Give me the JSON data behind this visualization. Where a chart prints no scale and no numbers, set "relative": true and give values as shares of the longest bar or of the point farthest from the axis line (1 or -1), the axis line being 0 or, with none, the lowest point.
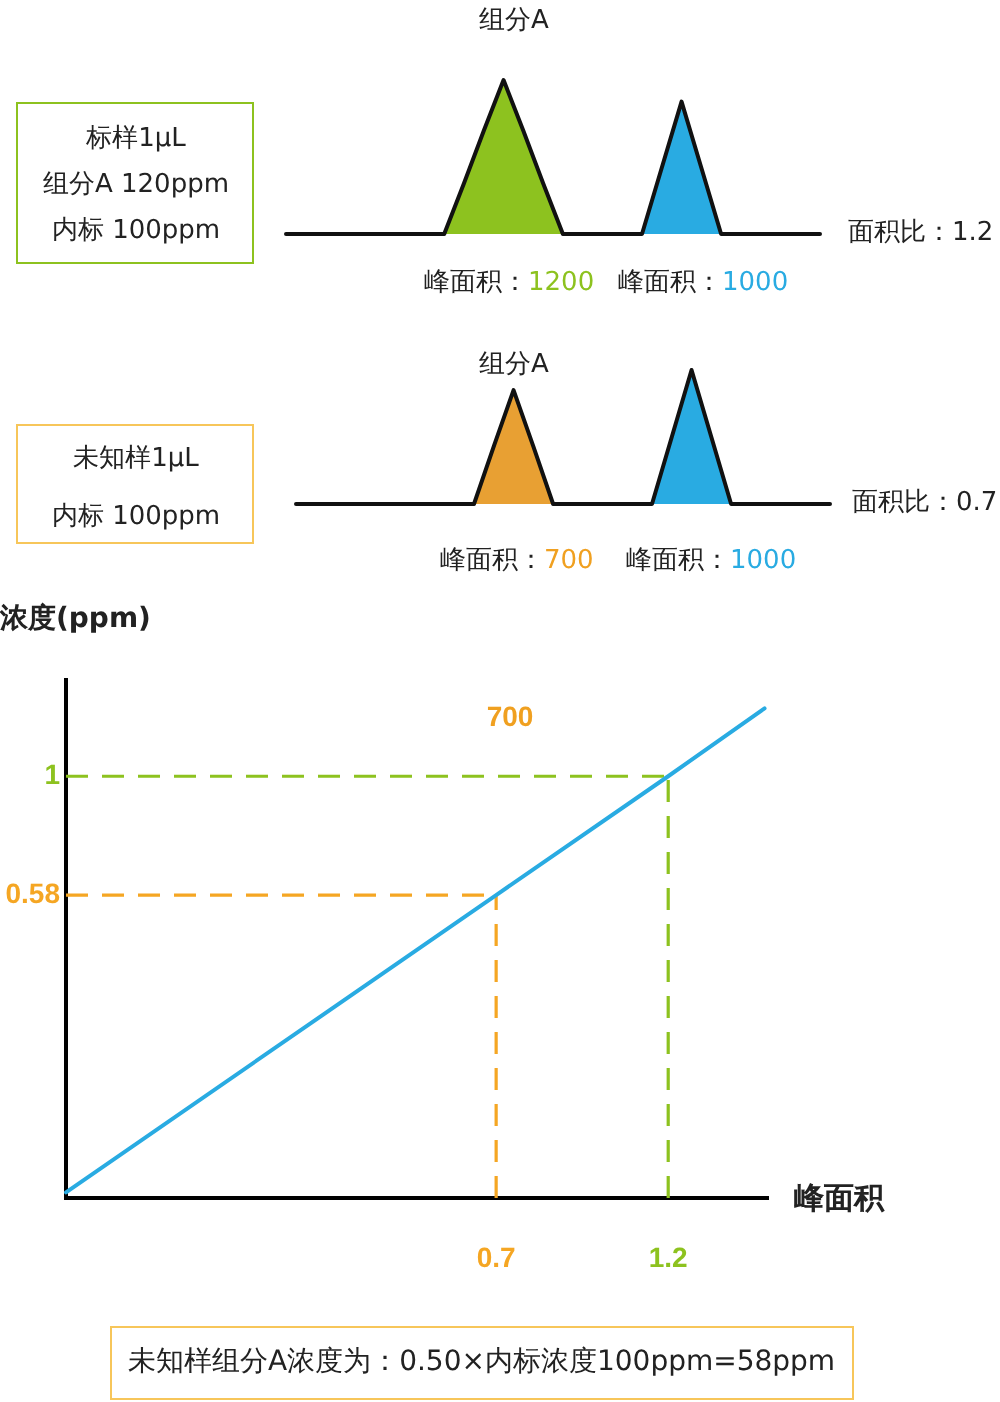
{
  "chart_data": [
    {
      "type": "line",
      "relative": true,
      "categories": [
        null,
        null,
        null,
        null,
        null,
        null,
        null,
        null,
        null,
        null,
        null,
        null,
        null,
        null,
        null,
        null,
        null,
        null,
        null,
        null,
        null,
        null,
        null,
        null,
        null,
        null,
        null,
        null
      ],
      "series": [
        {
          "type": "area",
          "color": "#8dc21f",
          "values": [
            null,
            null,
            null,
            null,
            null,
            null,
            null,
            null,
            0,
            0.33,
            0.67,
            1,
            0.67,
            0.33,
            0,
            null,
            null,
            null,
            null,
            null,
            null,
            null,
            null,
            null,
            null,
            null,
            null,
            null
          ]
        },
        {
          "type": "area",
          "color": "#29abe2",
          "values": [
            null,
            null,
            null,
            null,
            null,
            null,
            null,
            null,
            null,
            null,
            null,
            null,
            null,
            null,
            null,
            null,
            null,
            null,
            0,
            0.43,
            0.86,
            0.43,
            0,
            null,
            null,
            null,
            null,
            null
          ]
        },
        {
          "color": "#111111",
          "values": [
            0,
            0,
            0,
            0,
            0,
            0,
            0,
            0,
            0,
            0.33,
            0.67,
            1,
            0.67,
            0.33,
            0,
            0,
            0,
            0,
            0,
            0.43,
            0.86,
            0.43,
            0,
            0,
            0,
            0,
            0,
            0
          ]
        }
      ],
      "annotations": [
        "标样1μL",
        "组分A 120ppm",
        "内标 100ppm",
        "组分A",
        "峰面积：",
        "1200",
        "峰面积：",
        "1000",
        "面积比：1.2"
      ]
    },
    {
      "type": "line",
      "relative": true,
      "categories": [
        null,
        null,
        null,
        null,
        null,
        null,
        null,
        null,
        null,
        null,
        null,
        null,
        null,
        null,
        null,
        null,
        null,
        null,
        null,
        null,
        null,
        null,
        null,
        null,
        null,
        null,
        null,
        null
      ],
      "series": [
        {
          "type": "area",
          "color": "#e8a033",
          "values": [
            null,
            null,
            null,
            null,
            null,
            null,
            null,
            null,
            null,
            0,
            0.43,
            0.85,
            0.43,
            0,
            null,
            null,
            null,
            null,
            null,
            null,
            null,
            null,
            null,
            null,
            null,
            null,
            null,
            null
          ]
        },
        {
          "type": "area",
          "color": "#29abe2",
          "values": [
            null,
            null,
            null,
            null,
            null,
            null,
            null,
            null,
            null,
            null,
            null,
            null,
            null,
            null,
            null,
            null,
            null,
            null,
            0,
            0.5,
            1,
            0.5,
            0,
            null,
            null,
            null,
            null,
            null
          ]
        },
        {
          "color": "#111111",
          "values": [
            0,
            0,
            0,
            0,
            0,
            0,
            0,
            0,
            0,
            0,
            0.43,
            0.85,
            0.43,
            0,
            0,
            0,
            0,
            0,
            0,
            0.5,
            1,
            0.5,
            0,
            0,
            0,
            0,
            0,
            0
          ]
        }
      ],
      "annotations": [
        "未知样1μL",
        "内标 100ppm",
        "组分A",
        "峰面积：",
        "700",
        "峰面积：",
        "1000",
        "面积比：0.7"
      ]
    },
    {
      "type": "line",
      "xlabel": "峰面积",
      "ylabel": "浓度(ppm)",
      "xlim": [
        -0.55,
        1.49
      ],
      "ylim": [
        -0.49,
        1.34
      ],
      "xticks": [
        0.7,
        1.2
      ],
      "yticks": [
        0.58,
        1
      ],
      "series": [
        {
          "color": "#29abe2",
          "x": [
            -0.55,
            0.7,
            1.2,
            1.48
          ],
          "values": [
            -0.47,
            0.58,
            1,
            1.24
          ]
        }
      ],
      "ref_lines": [
        {
          "axis": "y",
          "value": 1,
          "color": "#8dc21f",
          "line_style": "dashed"
        },
        {
          "axis": "x",
          "value": 1.2,
          "color": "#8dc21f",
          "line_style": "dashed"
        },
        {
          "axis": "y",
          "value": 0.58,
          "color": "#f5a623",
          "line_style": "dashed"
        },
        {
          "axis": "x",
          "value": 0.7,
          "color": "#f5a623",
          "line_style": "dashed"
        }
      ],
      "annotations": [
        "700",
        "未知样组分A浓度为：0.50×内标浓度100ppm=58ppm"
      ]
    }
  ]
}
